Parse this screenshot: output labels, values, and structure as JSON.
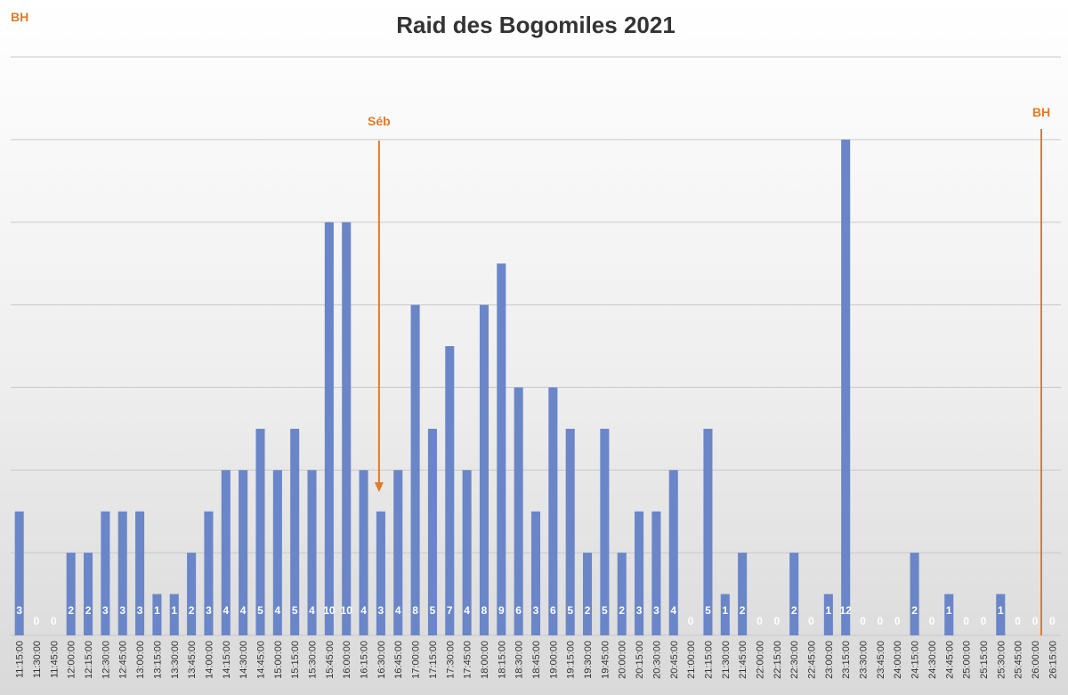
{
  "chart_data": {
    "type": "bar",
    "title": "Raid des Bogomiles 2021",
    "xlabel": "",
    "ylabel": "",
    "ylim": [
      0,
      14
    ],
    "grid": true,
    "legend": "none",
    "bar_color": "#6a86c8",
    "annotation_color": "#e07b2a",
    "categories": [
      "11:15:00",
      "11:30:00",
      "11:45:00",
      "12:00:00",
      "12:15:00",
      "12:30:00",
      "12:45:00",
      "13:00:00",
      "13:15:00",
      "13:30:00",
      "13:45:00",
      "14:00:00",
      "14:15:00",
      "14:30:00",
      "14:45:00",
      "15:00:00",
      "15:15:00",
      "15:30:00",
      "15:45:00",
      "16:00:00",
      "16:15:00",
      "16:30:00",
      "16:45:00",
      "17:00:00",
      "17:15:00",
      "17:30:00",
      "17:45:00",
      "18:00:00",
      "18:15:00",
      "18:30:00",
      "18:45:00",
      "19:00:00",
      "19:15:00",
      "19:30:00",
      "19:45:00",
      "20:00:00",
      "20:15:00",
      "20:30:00",
      "20:45:00",
      "21:00:00",
      "21:15:00",
      "21:30:00",
      "21:45:00",
      "22:00:00",
      "22:15:00",
      "22:30:00",
      "22:45:00",
      "23:00:00",
      "23:15:00",
      "23:30:00",
      "23:45:00",
      "24:00:00",
      "24:15:00",
      "24:30:00",
      "24:45:00",
      "25:00:00",
      "25:15:00",
      "25:30:00",
      "25:45:00",
      "26:00:00",
      "26:15:00"
    ],
    "values": [
      3,
      0,
      0,
      2,
      2,
      3,
      3,
      3,
      1,
      1,
      2,
      3,
      4,
      4,
      5,
      4,
      5,
      4,
      10,
      10,
      4,
      3,
      4,
      8,
      5,
      7,
      4,
      8,
      9,
      6,
      3,
      6,
      5,
      2,
      5,
      2,
      3,
      3,
      4,
      0,
      5,
      1,
      2,
      0,
      0,
      2,
      0,
      1,
      12,
      0,
      0,
      0,
      2,
      0,
      1,
      0,
      0,
      1,
      0,
      0,
      0
    ],
    "annotations": [
      {
        "label": "BH",
        "x": "11:15:00",
        "style": "text"
      },
      {
        "label": "Séb",
        "x": "16:30:00",
        "style": "arrow"
      },
      {
        "label": "BH",
        "x": "26:00:00",
        "style": "line"
      }
    ]
  }
}
